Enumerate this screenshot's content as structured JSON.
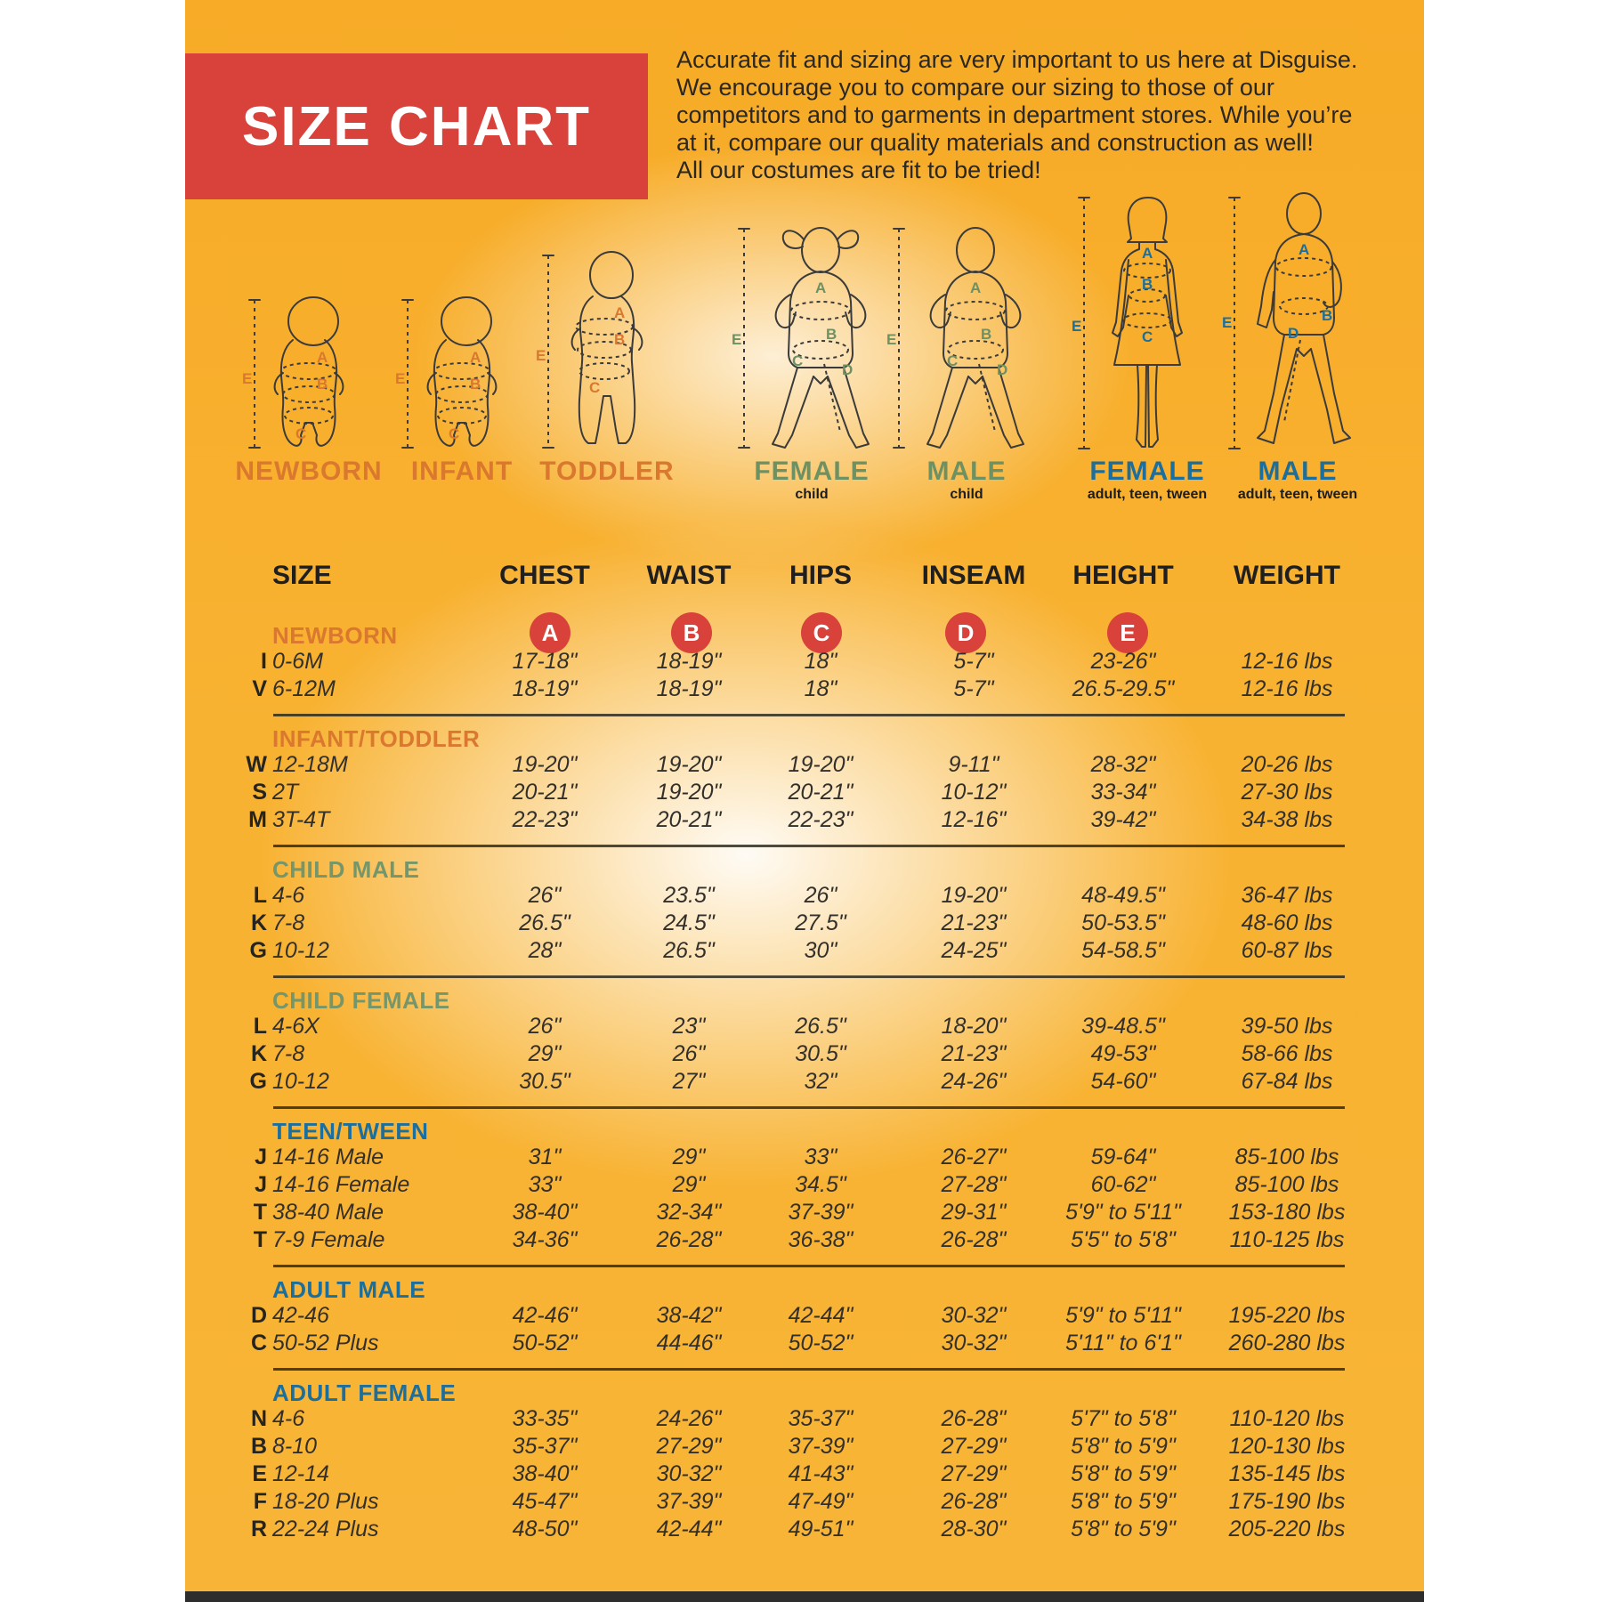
{
  "header": {
    "title": "SIZE CHART",
    "intro": "Accurate fit and sizing are very important to us here at Disguise.\nWe encourage you to compare our sizing to those of our\ncompetitors and to garments in department stores. While you’re\nat it, compare our quality materials and construction as well!\nAll our costumes are fit to be tried!"
  },
  "figures": [
    {
      "label": "NEWBORN",
      "sublabel": "",
      "color": "#D9782E",
      "letters": [
        "E",
        "A",
        "B",
        "C"
      ]
    },
    {
      "label": "INFANT",
      "sublabel": "",
      "color": "#D9782E",
      "letters": [
        "E",
        "A",
        "B",
        "C"
      ]
    },
    {
      "label": "TODDLER",
      "sublabel": "",
      "color": "#D9782E",
      "letters": [
        "E",
        "A",
        "B",
        "C"
      ]
    },
    {
      "label": "FEMALE",
      "sublabel": "child",
      "color": "#6E9163",
      "letters": [
        "E",
        "A",
        "B",
        "C",
        "D"
      ]
    },
    {
      "label": "MALE",
      "sublabel": "child",
      "color": "#6E9163",
      "letters": [
        "E",
        "A",
        "B",
        "C",
        "D"
      ]
    },
    {
      "label": "FEMALE",
      "sublabel": "adult, teen, tween",
      "color": "#1C6E9C",
      "letters": [
        "E",
        "A",
        "B",
        "C"
      ]
    },
    {
      "label": "MALE",
      "sublabel": "adult, teen, tween",
      "color": "#1C6E9C",
      "letters": [
        "E",
        "A",
        "B",
        "D"
      ]
    }
  ],
  "table": {
    "columns": [
      "SIZE",
      "CHEST",
      "WAIST",
      "HIPS",
      "INSEAM",
      "HEIGHT",
      "WEIGHT"
    ],
    "measure_letters": [
      "A",
      "B",
      "C",
      "D",
      "E"
    ],
    "sections": [
      {
        "name": "NEWBORN",
        "color": "#D9782E",
        "rows": [
          {
            "code": "I",
            "size": "0-6M",
            "values": [
              "17-18\"",
              "18-19\"",
              "18\"",
              "5-7\"",
              "23-26\"",
              "12-16 lbs"
            ]
          },
          {
            "code": "V",
            "size": "6-12M",
            "values": [
              "18-19\"",
              "18-19\"",
              "18\"",
              "5-7\"",
              "26.5-29.5\"",
              "12-16 lbs"
            ]
          }
        ]
      },
      {
        "name": "INFANT/TODDLER",
        "color": "#D9782E",
        "rows": [
          {
            "code": "W",
            "size": "12-18M",
            "values": [
              "19-20\"",
              "19-20\"",
              "19-20\"",
              "9-11\"",
              "28-32\"",
              "20-26 lbs"
            ]
          },
          {
            "code": "S",
            "size": "2T",
            "values": [
              "20-21\"",
              "19-20\"",
              "20-21\"",
              "10-12\"",
              "33-34\"",
              "27-30 lbs"
            ]
          },
          {
            "code": "M",
            "size": "3T-4T",
            "values": [
              "22-23\"",
              "20-21\"",
              "22-23\"",
              "12-16\"",
              "39-42\"",
              "34-38 lbs"
            ]
          }
        ]
      },
      {
        "name": "CHILD MALE",
        "color": "#75956A",
        "rows": [
          {
            "code": "L",
            "size": "4-6",
            "values": [
              "26\"",
              "23.5\"",
              "26\"",
              "19-20\"",
              "48-49.5\"",
              "36-47 lbs"
            ]
          },
          {
            "code": "K",
            "size": "7-8",
            "values": [
              "26.5\"",
              "24.5\"",
              "27.5\"",
              "21-23\"",
              "50-53.5\"",
              "48-60 lbs"
            ]
          },
          {
            "code": "G",
            "size": "10-12",
            "values": [
              "28\"",
              "26.5\"",
              "30\"",
              "24-25\"",
              "54-58.5\"",
              "60-87 lbs"
            ]
          }
        ]
      },
      {
        "name": "CHILD FEMALE",
        "color": "#75956A",
        "rows": [
          {
            "code": "L",
            "size": "4-6X",
            "values": [
              "26\"",
              "23\"",
              "26.5\"",
              "18-20\"",
              "39-48.5\"",
              "39-50 lbs"
            ]
          },
          {
            "code": "K",
            "size": "7-8",
            "values": [
              "29\"",
              "26\"",
              "30.5\"",
              "21-23\"",
              "49-53\"",
              "58-66 lbs"
            ]
          },
          {
            "code": "G",
            "size": "10-12",
            "values": [
              "30.5\"",
              "27\"",
              "32\"",
              "24-26\"",
              "54-60\"",
              "67-84 lbs"
            ]
          }
        ]
      },
      {
        "name": "TEEN/TWEEN",
        "color": "#1C6E9C",
        "rows": [
          {
            "code": "J",
            "size": "14-16 Male",
            "values": [
              "31\"",
              "29\"",
              "33\"",
              "26-27\"",
              "59-64\"",
              "85-100 lbs"
            ]
          },
          {
            "code": "J",
            "size": "14-16 Female",
            "values": [
              "33\"",
              "29\"",
              "34.5\"",
              "27-28\"",
              "60-62\"",
              "85-100 lbs"
            ]
          },
          {
            "code": "T",
            "size": "38-40 Male",
            "values": [
              "38-40\"",
              "32-34\"",
              "37-39\"",
              "29-31\"",
              "5'9\" to 5'11\"",
              "153-180 lbs"
            ]
          },
          {
            "code": "T",
            "size": "7-9 Female",
            "values": [
              "34-36\"",
              "26-28\"",
              "36-38\"",
              "26-28\"",
              "5'5\" to 5'8\"",
              "110-125 lbs"
            ]
          }
        ]
      },
      {
        "name": "ADULT MALE",
        "color": "#1C6E9C",
        "rows": [
          {
            "code": "D",
            "size": "42-46",
            "values": [
              "42-46\"",
              "38-42\"",
              "42-44\"",
              "30-32\"",
              "5'9\" to 5'11\"",
              "195-220 lbs"
            ]
          },
          {
            "code": "C",
            "size": "50-52 Plus",
            "values": [
              "50-52\"",
              "44-46\"",
              "50-52\"",
              "30-32\"",
              "5'11\" to 6'1\"",
              "260-280 lbs"
            ]
          }
        ]
      },
      {
        "name": "ADULT FEMALE",
        "color": "#1C6E9C",
        "rows": [
          {
            "code": "N",
            "size": "4-6",
            "values": [
              "33-35\"",
              "24-26\"",
              "35-37\"",
              "26-28\"",
              "5'7\" to 5'8\"",
              "110-120 lbs"
            ]
          },
          {
            "code": "B",
            "size": "8-10",
            "values": [
              "35-37\"",
              "27-29\"",
              "37-39\"",
              "27-29\"",
              "5'8\" to 5'9\"",
              "120-130 lbs"
            ]
          },
          {
            "code": "E",
            "size": "12-14",
            "values": [
              "38-40\"",
              "30-32\"",
              "41-43\"",
              "27-29\"",
              "5'8\" to 5'9\"",
              "135-145 lbs"
            ]
          },
          {
            "code": "F",
            "size": "18-20 Plus",
            "values": [
              "45-47\"",
              "37-39\"",
              "47-49\"",
              "26-28\"",
              "5'8\" to 5'9\"",
              "175-190 lbs"
            ]
          },
          {
            "code": "R",
            "size": "22-24 Plus",
            "values": [
              "48-50\"",
              "42-44\"",
              "49-51\"",
              "28-30\"",
              "5'8\" to 5'9\"",
              "205-220 lbs"
            ]
          }
        ]
      }
    ]
  },
  "colors": {
    "background_yellow": "#F8B231",
    "banner_red": "#D8423A",
    "circle_red": "#D8423A",
    "orange_label": "#D9782E",
    "green_label": "#75956A",
    "blue_label": "#1C6E9C",
    "text_dark": "#33302B"
  }
}
